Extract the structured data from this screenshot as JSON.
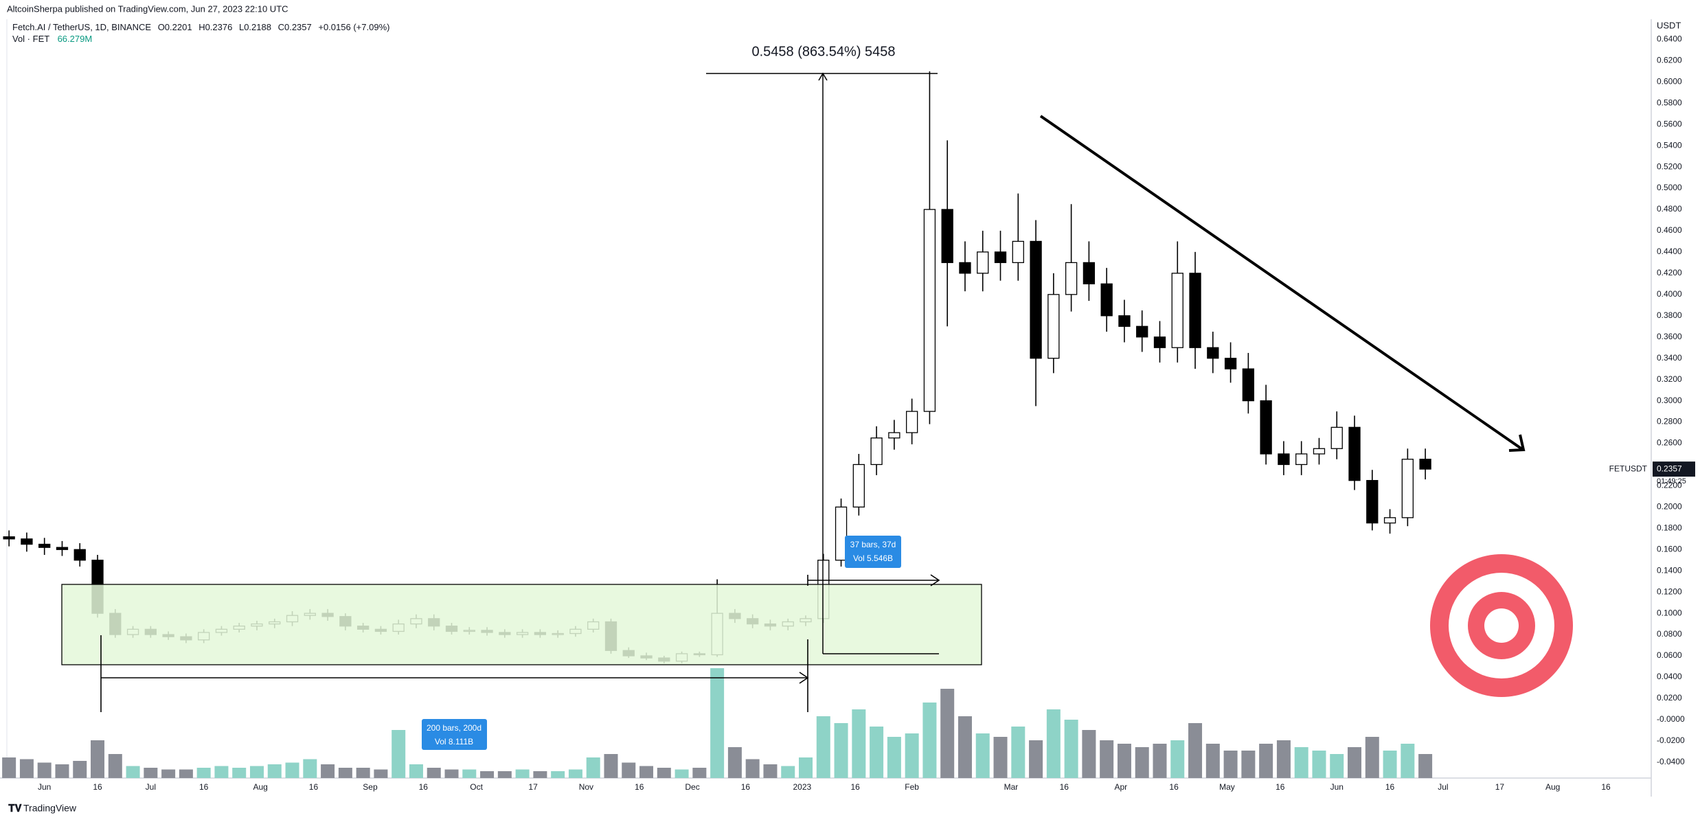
{
  "chart_data": {
    "type": "candlestick",
    "published": "AltcoinSherpa published on TradingView.com, Jun 27, 2023 22:10 UTC",
    "symbol": "Fetch.AI / TetherUS, 1D, BINANCE",
    "ohlc_labels": [
      "O0.2201",
      "H0.2376",
      "L0.2188",
      "C0.2357"
    ],
    "change": "+0.0156 (+7.09%)",
    "volume_label": "Vol · FET",
    "volume_value": "66.279M",
    "measure_label": "0.5458 (863.54%) 5458",
    "range_labels": [
      [
        "37 bars, 37d",
        "Vol 5.546B"
      ],
      [
        "200 bars, 200d",
        "Vol 8.111B"
      ]
    ],
    "price_unit": "USDT",
    "ticker": "FETUSDT",
    "last_price": 0.2357,
    "countdown": "01:49:25",
    "brand": "TradingView",
    "up_color": "#ffffff",
    "down_color": "#000000",
    "volume_up_color": "#8ed3c7",
    "volume_down_color": "#8a8d96",
    "grid": false,
    "x": [
      -10,
      -5,
      0,
      5,
      10,
      15,
      20,
      25,
      30,
      35,
      40,
      45,
      50,
      55,
      60,
      65,
      70,
      75,
      80,
      85,
      90,
      95,
      100,
      105,
      110,
      115,
      120,
      125,
      130,
      135,
      140,
      145,
      150,
      155,
      160,
      165,
      170,
      175,
      180,
      185,
      190,
      195,
      200,
      205,
      210,
      215,
      220,
      225,
      230,
      235,
      240,
      245,
      250,
      255,
      260,
      265,
      270,
      275,
      280,
      285,
      290,
      295,
      300,
      305,
      310,
      315,
      320,
      325,
      330,
      335,
      340,
      345,
      350,
      355,
      360,
      365,
      370,
      375,
      380,
      385,
      390
    ],
    "open": [
      0.172,
      0.17,
      0.165,
      0.162,
      0.16,
      0.15,
      0.1,
      0.08,
      0.085,
      0.08,
      0.078,
      0.075,
      0.082,
      0.085,
      0.088,
      0.09,
      0.092,
      0.098,
      0.1,
      0.097,
      0.088,
      0.085,
      0.083,
      0.09,
      0.095,
      0.088,
      0.083,
      0.084,
      0.082,
      0.08,
      0.082,
      0.08,
      0.081,
      0.085,
      0.092,
      0.065,
      0.06,
      0.058,
      0.055,
      0.062,
      0.061,
      0.1,
      0.095,
      0.09,
      0.088,
      0.092,
      0.095,
      0.15,
      0.2,
      0.24,
      0.265,
      0.27,
      0.29,
      0.48,
      0.43,
      0.42,
      0.44,
      0.43,
      0.45,
      0.34,
      0.4,
      0.43,
      0.41,
      0.38,
      0.37,
      0.36,
      0.35,
      0.42,
      0.35,
      0.34,
      0.33,
      0.3,
      0.25,
      0.24,
      0.25,
      0.255,
      0.275,
      0.225,
      0.185,
      0.19,
      0.245
    ],
    "high": [
      0.178,
      0.176,
      0.171,
      0.168,
      0.166,
      0.155,
      0.104,
      0.088,
      0.088,
      0.083,
      0.081,
      0.085,
      0.088,
      0.091,
      0.093,
      0.095,
      0.102,
      0.104,
      0.104,
      0.1,
      0.091,
      0.088,
      0.094,
      0.099,
      0.099,
      0.091,
      0.087,
      0.087,
      0.085,
      0.085,
      0.085,
      0.084,
      0.088,
      0.095,
      0.095,
      0.068,
      0.063,
      0.06,
      0.064,
      0.064,
      0.132,
      0.104,
      0.099,
      0.094,
      0.095,
      0.098,
      0.156,
      0.208,
      0.25,
      0.276,
      0.282,
      0.302,
      0.61,
      0.545,
      0.45,
      0.46,
      0.46,
      0.495,
      0.47,
      0.42,
      0.485,
      0.45,
      0.425,
      0.395,
      0.385,
      0.375,
      0.45,
      0.44,
      0.365,
      0.355,
      0.345,
      0.315,
      0.262,
      0.262,
      0.265,
      0.29,
      0.286,
      0.235,
      0.198,
      0.255,
      0.255
    ],
    "low": [
      0.163,
      0.158,
      0.155,
      0.154,
      0.144,
      0.096,
      0.077,
      0.077,
      0.077,
      0.075,
      0.072,
      0.072,
      0.079,
      0.082,
      0.084,
      0.086,
      0.088,
      0.094,
      0.093,
      0.084,
      0.082,
      0.08,
      0.08,
      0.086,
      0.084,
      0.08,
      0.08,
      0.079,
      0.077,
      0.077,
      0.077,
      0.077,
      0.078,
      0.082,
      0.062,
      0.058,
      0.056,
      0.053,
      0.053,
      0.059,
      0.059,
      0.091,
      0.086,
      0.084,
      0.084,
      0.088,
      0.091,
      0.144,
      0.192,
      0.23,
      0.254,
      0.259,
      0.278,
      0.37,
      0.403,
      0.403,
      0.413,
      0.413,
      0.295,
      0.326,
      0.384,
      0.394,
      0.365,
      0.355,
      0.346,
      0.336,
      0.336,
      0.33,
      0.326,
      0.317,
      0.288,
      0.24,
      0.23,
      0.23,
      0.24,
      0.245,
      0.216,
      0.178,
      0.175,
      0.182,
      0.226
    ],
    "close": [
      0.17,
      0.165,
      0.162,
      0.16,
      0.15,
      0.1,
      0.08,
      0.085,
      0.08,
      0.078,
      0.075,
      0.082,
      0.085,
      0.088,
      0.09,
      0.092,
      0.098,
      0.1,
      0.097,
      0.088,
      0.085,
      0.083,
      0.09,
      0.095,
      0.088,
      0.083,
      0.084,
      0.082,
      0.08,
      0.082,
      0.08,
      0.081,
      0.085,
      0.092,
      0.065,
      0.06,
      0.058,
      0.055,
      0.062,
      0.061,
      0.1,
      0.095,
      0.09,
      0.088,
      0.092,
      0.095,
      0.15,
      0.2,
      0.24,
      0.265,
      0.27,
      0.29,
      0.48,
      0.43,
      0.42,
      0.44,
      0.43,
      0.45,
      0.34,
      0.4,
      0.43,
      0.41,
      0.38,
      0.37,
      0.36,
      0.35,
      0.42,
      0.35,
      0.34,
      0.33,
      0.3,
      0.25,
      0.24,
      0.25,
      0.255,
      0.275,
      0.225,
      0.185,
      0.19,
      0.245,
      0.2357
    ],
    "volume": [
      60,
      55,
      45,
      40,
      50,
      110,
      70,
      35,
      30,
      25,
      25,
      30,
      35,
      30,
      35,
      40,
      45,
      55,
      40,
      30,
      30,
      25,
      140,
      40,
      30,
      25,
      25,
      20,
      20,
      25,
      20,
      20,
      25,
      60,
      70,
      45,
      35,
      30,
      25,
      30,
      320,
      90,
      55,
      40,
      35,
      60,
      180,
      160,
      200,
      150,
      120,
      130,
      220,
      260,
      180,
      130,
      120,
      150,
      110,
      200,
      170,
      140,
      110,
      100,
      90,
      100,
      110,
      160,
      100,
      80,
      80,
      100,
      110,
      90,
      80,
      70,
      90,
      120,
      80,
      100,
      70
    ],
    "xlim": [
      -12.55,
      453.8
    ],
    "ylim": [
      -0.055,
      0.659
    ],
    "xticks": [
      {
        "value": 0,
        "label": "Jun"
      },
      {
        "value": 15,
        "label": "16"
      },
      {
        "value": 30,
        "label": "Jul"
      },
      {
        "value": 45,
        "label": "16"
      },
      {
        "value": 61,
        "label": "Aug"
      },
      {
        "value": 76,
        "label": "16"
      },
      {
        "value": 92,
        "label": "Sep"
      },
      {
        "value": 107,
        "label": "16"
      },
      {
        "value": 122,
        "label": "Oct"
      },
      {
        "value": 138,
        "label": "17"
      },
      {
        "value": 153,
        "label": "Nov"
      },
      {
        "value": 168,
        "label": "16"
      },
      {
        "value": 183,
        "label": "Dec"
      },
      {
        "value": 198,
        "label": "16"
      },
      {
        "value": 214,
        "label": "2023"
      },
      {
        "value": 229,
        "label": "16"
      },
      {
        "value": 245,
        "label": "Feb"
      },
      {
        "value": 273,
        "label": "Mar"
      },
      {
        "value": 288,
        "label": "16"
      },
      {
        "value": 304,
        "label": "Apr"
      },
      {
        "value": 319,
        "label": "16"
      },
      {
        "value": 334,
        "label": "May"
      },
      {
        "value": 349,
        "label": "16"
      },
      {
        "value": 365,
        "label": "Jun"
      },
      {
        "value": 380,
        "label": "16"
      },
      {
        "value": 395,
        "label": "Jul"
      },
      {
        "value": 411,
        "label": "17"
      },
      {
        "value": 426,
        "label": "Aug"
      },
      {
        "value": 441,
        "label": "16"
      }
    ],
    "yticks": [
      {
        "value": 0.64,
        "label": "0.6400"
      },
      {
        "value": 0.62,
        "label": "0.6200"
      },
      {
        "value": 0.6,
        "label": "0.6000"
      },
      {
        "value": 0.58,
        "label": "0.5800"
      },
      {
        "value": 0.56,
        "label": "0.5600"
      },
      {
        "value": 0.54,
        "label": "0.5400"
      },
      {
        "value": 0.52,
        "label": "0.5200"
      },
      {
        "value": 0.5,
        "label": "0.5000"
      },
      {
        "value": 0.48,
        "label": "0.4800"
      },
      {
        "value": 0.46,
        "label": "0.4600"
      },
      {
        "value": 0.44,
        "label": "0.4400"
      },
      {
        "value": 0.42,
        "label": "0.4200"
      },
      {
        "value": 0.4,
        "label": "0.4000"
      },
      {
        "value": 0.38,
        "label": "0.3800"
      },
      {
        "value": 0.36,
        "label": "0.3600"
      },
      {
        "value": 0.34,
        "label": "0.3400"
      },
      {
        "value": 0.32,
        "label": "0.3200"
      },
      {
        "value": 0.3,
        "label": "0.3000"
      },
      {
        "value": 0.28,
        "label": "0.2800"
      },
      {
        "value": 0.26,
        "label": "0.2600"
      },
      {
        "value": 0.22,
        "label": "0.2200"
      },
      {
        "value": 0.2,
        "label": "0.2000"
      },
      {
        "value": 0.18,
        "label": "0.1800"
      },
      {
        "value": 0.16,
        "label": "0.1600"
      },
      {
        "value": 0.14,
        "label": "0.1400"
      },
      {
        "value": 0.12,
        "label": "0.1200"
      },
      {
        "value": 0.1,
        "label": "0.1000"
      },
      {
        "value": 0.08,
        "label": "0.0800"
      },
      {
        "value": 0.06,
        "label": "0.0600"
      },
      {
        "value": 0.04,
        "label": "0.0400"
      },
      {
        "value": 0.02,
        "label": "0.0200"
      },
      {
        "value": 0,
        "label": "-0.0000"
      },
      {
        "value": -0.02,
        "label": "-0.0200"
      },
      {
        "value": -0.04,
        "label": "-0.0400"
      }
    ]
  }
}
